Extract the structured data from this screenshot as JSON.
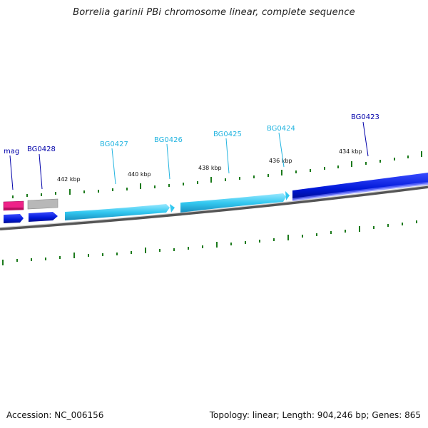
{
  "title": "Borrelia garinii PBi chromosome linear, complete sequence",
  "footer": {
    "accession": "Accession: NC_006156",
    "summary": "Topology: linear; Length: 904,246 bp; Genes: 865"
  },
  "colors": {
    "background": "#ffffff",
    "backbone": "#7a7a7a",
    "tick": "#1c7a1c",
    "gene_dark_blue": "#0018d8",
    "gene_light_blue": "#33c8f0",
    "gene_pink": "#ee2288",
    "gene_gray": "#b8b8b8",
    "label_dark": "#0000aa",
    "label_light": "#22b4e0"
  },
  "scale_labels": [
    "442 kbp",
    "440 kbp",
    "438 kbp",
    "436 kbp",
    "434 kbp"
  ],
  "gene_labels": [
    "mag",
    "BG0428",
    "BG0427",
    "BG0426",
    "BG0425",
    "BG0424",
    "BG0423"
  ]
}
